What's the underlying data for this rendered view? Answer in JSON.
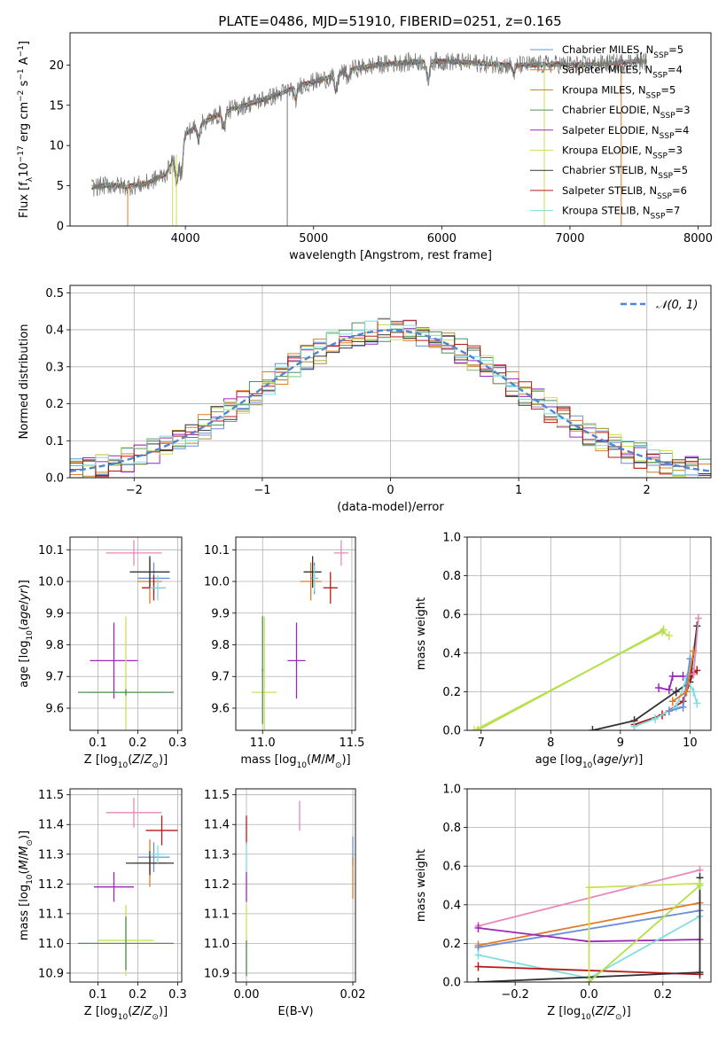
{
  "title": "PLATE=0486, MJD=51910, FIBERID=0251, z=0.165",
  "colors": {
    "Chabrier MILES": "#6a8fd8",
    "Salpeter MILES": "#e07a28",
    "Kroupa MILES": "#b08a2a",
    "Chabrier ELODIE": "#4f8f5a",
    "Salpeter ELODIE": "#9a28b8",
    "Kroupa ELODIE": "#c9e05a",
    "Chabrier STELIB": "#333333",
    "Salpeter STELIB": "#b81a1a",
    "Kroupa STELIB": "#7fdede",
    "pink": "#e68ab8",
    "lime": "#b0e04a",
    "data": "#777777",
    "gauss": "#4f86d0"
  },
  "chart_data": [
    {
      "id": "spectrum",
      "type": "line",
      "xlabel": "wavelength [Angstrom, rest frame]",
      "ylabel": "Flux [f_λ10^-17 erg cm^-2 s^-1 A^-1]",
      "xlim": [
        3100,
        8100
      ],
      "ylim": [
        0,
        24
      ],
      "xticks": [
        4000,
        5000,
        6000,
        7000,
        8000
      ],
      "yticks": [
        0,
        5,
        10,
        15,
        20
      ],
      "legend_position": "top-right",
      "legend": [
        {
          "label": "Chabrier MILES, N",
          "sub": "SSP",
          "suffix": "=5",
          "series": "Chabrier MILES"
        },
        {
          "label": "Salpeter MILES, N",
          "sub": "SSP",
          "suffix": "=4",
          "series": "Salpeter MILES"
        },
        {
          "label": "Kroupa MILES, N",
          "sub": "SSP",
          "suffix": "=5",
          "series": "Kroupa MILES"
        },
        {
          "label": "Chabrier ELODIE, N",
          "sub": "SSP",
          "suffix": "=3",
          "series": "Chabrier ELODIE"
        },
        {
          "label": "Salpeter ELODIE, N",
          "sub": "SSP",
          "suffix": "=4",
          "series": "Salpeter ELODIE"
        },
        {
          "label": "Kroupa ELODIE, N",
          "sub": "SSP",
          "suffix": "=3",
          "series": "Kroupa ELODIE"
        },
        {
          "label": "Chabrier STELIB, N",
          "sub": "SSP",
          "suffix": "=5",
          "series": "Chabrier STELIB"
        },
        {
          "label": "Salpeter STELIB, N",
          "sub": "SSP",
          "suffix": "=6",
          "series": "Salpeter STELIB"
        },
        {
          "label": "Kroupa STELIB, N",
          "sub": "SSP",
          "suffix": "=7",
          "series": "Kroupa STELIB"
        }
      ],
      "continuum": [
        [
          3270,
          4.8
        ],
        [
          3400,
          5.1
        ],
        [
          3550,
          4.9
        ],
        [
          3700,
          5.3
        ],
        [
          3850,
          6.5
        ],
        [
          3950,
          9.5
        ],
        [
          4000,
          11.5
        ],
        [
          4100,
          12.5
        ],
        [
          4300,
          14.2
        ],
        [
          4500,
          15.2
        ],
        [
          4700,
          16.2
        ],
        [
          4900,
          17.5
        ],
        [
          5100,
          18.3
        ],
        [
          5300,
          19.5
        ],
        [
          5500,
          20.0
        ],
        [
          5700,
          20.3
        ],
        [
          5900,
          20.5
        ],
        [
          6100,
          20.4
        ],
        [
          6300,
          20.2
        ],
        [
          6500,
          20.0
        ],
        [
          6700,
          20.0
        ],
        [
          6900,
          20.1
        ],
        [
          7100,
          20.0
        ],
        [
          7300,
          20.2
        ],
        [
          7500,
          20.4
        ],
        [
          7600,
          20.5
        ]
      ],
      "absorption_lines": [
        [
          3934,
          3.5
        ],
        [
          3969,
          3.5
        ],
        [
          4102,
          1.5
        ],
        [
          4300,
          2.0
        ],
        [
          4861,
          1.5
        ],
        [
          5175,
          2.0
        ],
        [
          5270,
          1.0
        ],
        [
          5892,
          2.5
        ],
        [
          6563,
          1.0
        ]
      ],
      "model_cutoffs": [
        [
          3550,
          "Salpeter MILES"
        ],
        [
          3900,
          "Kroupa ELODIE"
        ],
        [
          3930,
          "Kroupa ELODIE"
        ],
        [
          4795,
          "data"
        ],
        [
          6800,
          "Kroupa ELODIE"
        ],
        [
          7400,
          "Salpeter MILES"
        ]
      ]
    },
    {
      "id": "residuals",
      "type": "histogram",
      "xlabel": "(data-model)/error",
      "ylabel": "Normed distribution",
      "xlim": [
        -2.5,
        2.5
      ],
      "ylim": [
        0,
        0.52
      ],
      "xticks": [
        -2,
        -1,
        0,
        1,
        2
      ],
      "xtick_labels": [
        "−2",
        "−1",
        "0",
        "1",
        "2"
      ],
      "yticks": [
        0.0,
        0.1,
        0.2,
        0.3,
        0.4,
        0.5
      ],
      "ytick_labels": [
        "0.0",
        "0.1",
        "0.2",
        "0.3",
        "0.4",
        "0.5"
      ],
      "legend_label": "𝒩(0, 1)",
      "bin_width": 0.1,
      "gauss": {
        "mu": 0,
        "sigma": 1
      }
    },
    {
      "id": "age_vs_Z",
      "type": "errorbar",
      "xlabel": "Z [log10(Z/Z⊙)]",
      "ylabel": "age  [log10(age/yr)]",
      "xlim": [
        0.03,
        0.31
      ],
      "ylim": [
        9.53,
        10.14
      ],
      "xticks": [
        0.1,
        0.2,
        0.3
      ],
      "yticks": [
        9.6,
        9.7,
        9.8,
        9.9,
        10.0,
        10.1
      ],
      "points": [
        {
          "series": "pink",
          "x": 0.19,
          "y": 10.09,
          "xerr": 0.07,
          "yerr": 0.04
        },
        {
          "series": "Chabrier MILES",
          "x": 0.24,
          "y": 10.01,
          "xerr": 0.04,
          "yerr": 0.05
        },
        {
          "series": "Salpeter MILES",
          "x": 0.23,
          "y": 10.0,
          "xerr": 0.03,
          "yerr": 0.07
        },
        {
          "series": "Chabrier STELIB",
          "x": 0.23,
          "y": 10.03,
          "xerr": 0.05,
          "yerr": 0.05
        },
        {
          "series": "Salpeter STELIB",
          "x": 0.24,
          "y": 9.98,
          "xerr": 0.03,
          "yerr": 0.04
        },
        {
          "series": "Kroupa STELIB",
          "x": 0.25,
          "y": 9.98,
          "xerr": 0.02,
          "yerr": 0.04
        },
        {
          "series": "Salpeter ELODIE",
          "x": 0.14,
          "y": 9.75,
          "xerr": 0.06,
          "yerr": 0.12
        },
        {
          "series": "Kroupa ELODIE",
          "x": 0.17,
          "y": 9.65,
          "xerr": 0.09,
          "yerr": 0.24
        },
        {
          "series": "Chabrier ELODIE",
          "x": 0.17,
          "y": 9.65,
          "xerr": 0.12,
          "yerr": 0.01
        }
      ]
    },
    {
      "id": "age_vs_mass",
      "type": "errorbar",
      "xlabel": "mass [log10(M/M⊙)]",
      "ylabel": "",
      "xlim": [
        10.85,
        11.52
      ],
      "ylim": [
        9.53,
        10.14
      ],
      "xticks": [
        11.0,
        11.5
      ],
      "yticks": [
        9.6,
        9.7,
        9.8,
        9.9,
        10.0,
        10.1
      ],
      "points": [
        {
          "series": "pink",
          "x": 11.44,
          "y": 10.09,
          "xerr": 0.04,
          "yerr": 0.04
        },
        {
          "series": "Chabrier MILES",
          "x": 11.29,
          "y": 10.01,
          "xerr": 0.02,
          "yerr": 0.05
        },
        {
          "series": "Salpeter MILES",
          "x": 11.27,
          "y": 10.0,
          "xerr": 0.06,
          "yerr": 0.06
        },
        {
          "series": "Chabrier STELIB",
          "x": 11.28,
          "y": 10.03,
          "xerr": 0.05,
          "yerr": 0.05
        },
        {
          "series": "Salpeter STELIB",
          "x": 11.38,
          "y": 9.98,
          "xerr": 0.04,
          "yerr": 0.05
        },
        {
          "series": "Kroupa STELIB",
          "x": 11.29,
          "y": 10.01,
          "xerr": 0.01,
          "yerr": 0.04
        },
        {
          "series": "Salpeter ELODIE",
          "x": 11.19,
          "y": 9.75,
          "xerr": 0.05,
          "yerr": 0.12
        },
        {
          "series": "Kroupa ELODIE",
          "x": 11.01,
          "y": 9.65,
          "xerr": 0.07,
          "yerr": 0.24
        },
        {
          "series": "Chabrier ELODIE",
          "x": 11.0,
          "y": 9.72,
          "xerr": 0.005,
          "yerr": 0.17
        }
      ]
    },
    {
      "id": "weight_vs_age",
      "type": "line",
      "xlabel": "age  [log10(age/yr)]",
      "ylabel": "mass weight",
      "xlim": [
        6.8,
        10.3
      ],
      "ylim": [
        0,
        1.0
      ],
      "xticks": [
        7,
        8,
        9,
        10
      ],
      "yticks": [
        0.0,
        0.2,
        0.4,
        0.6,
        0.8,
        1.0
      ],
      "series": [
        {
          "series": "Kroupa ELODIE",
          "points": [
            [
              6.9,
              0.0
            ],
            [
              9.6,
              0.51
            ],
            [
              9.7,
              0.49
            ]
          ]
        },
        {
          "series": "lime",
          "points": [
            [
              6.95,
              0.0
            ],
            [
              9.62,
              0.52
            ]
          ]
        },
        {
          "series": "Chabrier STELIB",
          "points": [
            [
              8.6,
              0.0
            ],
            [
              9.2,
              0.05
            ],
            [
              9.8,
              0.2
            ],
            [
              10.0,
              0.25
            ],
            [
              10.1,
              0.54
            ]
          ]
        },
        {
          "series": "Salpeter STELIB",
          "points": [
            [
              9.2,
              0.03
            ],
            [
              9.6,
              0.08
            ],
            [
              9.9,
              0.15
            ],
            [
              10.05,
              0.3
            ],
            [
              10.1,
              0.31
            ]
          ]
        },
        {
          "series": "Salpeter ELODIE",
          "points": [
            [
              9.55,
              0.22
            ],
            [
              9.7,
              0.21
            ],
            [
              9.75,
              0.28
            ],
            [
              9.9,
              0.28
            ]
          ]
        },
        {
          "series": "Kroupa STELIB",
          "points": [
            [
              9.2,
              0.02
            ],
            [
              9.5,
              0.06
            ],
            [
              9.8,
              0.12
            ],
            [
              9.95,
              0.27
            ],
            [
              10.05,
              0.2
            ],
            [
              10.1,
              0.14
            ]
          ]
        },
        {
          "series": "Chabrier MILES",
          "points": [
            [
              9.7,
              0.1
            ],
            [
              9.9,
              0.12
            ],
            [
              10.0,
              0.37
            ]
          ]
        },
        {
          "series": "Salpeter MILES",
          "points": [
            [
              9.75,
              0.15
            ],
            [
              9.95,
              0.2
            ],
            [
              10.05,
              0.41
            ]
          ]
        },
        {
          "series": "pink",
          "points": [
            [
              10.05,
              0.29
            ],
            [
              10.12,
              0.58
            ]
          ]
        }
      ]
    },
    {
      "id": "mass_vs_Z",
      "type": "errorbar",
      "xlabel": "Z [log10(Z/Z⊙)]",
      "ylabel": "mass [log10(M/M⊙)]",
      "xlim": [
        0.03,
        0.31
      ],
      "ylim": [
        10.87,
        11.52
      ],
      "xticks": [
        0.1,
        0.2,
        0.3
      ],
      "yticks": [
        10.9,
        11.0,
        11.1,
        11.2,
        11.3,
        11.4,
        11.5
      ],
      "points": [
        {
          "series": "pink",
          "x": 0.19,
          "y": 11.44,
          "xerr": 0.07,
          "yerr": 0.05
        },
        {
          "series": "Salpeter STELIB",
          "x": 0.26,
          "y": 11.38,
          "xerr": 0.04,
          "yerr": 0.05
        },
        {
          "series": "Chabrier MILES",
          "x": 0.24,
          "y": 11.29,
          "xerr": 0.04,
          "yerr": 0.05
        },
        {
          "series": "Salpeter MILES",
          "x": 0.23,
          "y": 11.27,
          "xerr": 0.04,
          "yerr": 0.08
        },
        {
          "series": "Chabrier STELIB",
          "x": 0.23,
          "y": 11.27,
          "xerr": 0.06,
          "yerr": 0.04
        },
        {
          "series": "Kroupa STELIB",
          "x": 0.25,
          "y": 11.3,
          "xerr": 0.02,
          "yerr": 0.03
        },
        {
          "series": "Salpeter ELODIE",
          "x": 0.14,
          "y": 11.19,
          "xerr": 0.05,
          "yerr": 0.05
        },
        {
          "series": "Kroupa ELODIE",
          "x": 0.17,
          "y": 11.01,
          "xerr": 0.07,
          "yerr": 0.12
        },
        {
          "series": "Chabrier ELODIE",
          "x": 0.17,
          "y": 11.0,
          "xerr": 0.12,
          "yerr": 0.09
        }
      ]
    },
    {
      "id": "mass_vs_ebv",
      "type": "errorbar",
      "xlabel": "E(B-V)",
      "ylabel": "",
      "xlim": [
        -0.002,
        0.0205
      ],
      "ylim": [
        10.87,
        11.52
      ],
      "xticks": [
        0.0,
        0.02
      ],
      "xtick_labels": [
        "0.00",
        "0.02"
      ],
      "yticks": [
        10.9,
        11.0,
        11.1,
        11.2,
        11.3,
        11.4,
        11.5
      ],
      "points": [
        {
          "series": "pink",
          "x": 0.01,
          "y": 11.43,
          "xerr": 0,
          "yerr": 0.05
        },
        {
          "series": "Salpeter STELIB",
          "x": 0.0,
          "y": 11.38,
          "xerr": 0,
          "yerr": 0.05
        },
        {
          "series": "Chabrier MILES",
          "x": 0.02,
          "y": 11.31,
          "xerr": 0,
          "yerr": 0.05
        },
        {
          "series": "Salpeter MILES",
          "x": 0.02,
          "y": 11.22,
          "xerr": 0,
          "yerr": 0.07
        },
        {
          "series": "Kroupa STELIB",
          "x": 0.0,
          "y": 11.29,
          "xerr": 0,
          "yerr": 0.05
        },
        {
          "series": "Salpeter ELODIE",
          "x": 0.0,
          "y": 11.19,
          "xerr": 0,
          "yerr": 0.05
        },
        {
          "series": "Kroupa ELODIE",
          "x": 0.0,
          "y": 11.01,
          "xerr": 0,
          "yerr": 0.12
        },
        {
          "series": "Chabrier ELODIE",
          "x": 0.0,
          "y": 10.95,
          "xerr": 0,
          "yerr": 0.06
        }
      ]
    },
    {
      "id": "weight_vs_Z",
      "type": "line",
      "xlabel": "Z [log10(Z/Z⊙)]",
      "ylabel": "mass weight",
      "xlim": [
        -0.33,
        0.33
      ],
      "ylim": [
        0,
        1.0
      ],
      "xticks": [
        -0.2,
        0.0,
        0.2
      ],
      "xtick_labels": [
        "−0.2",
        "0.0",
        "0.2"
      ],
      "yticks": [
        0.0,
        0.2,
        0.4,
        0.6,
        0.8,
        1.0
      ],
      "series": [
        {
          "series": "pink",
          "points": [
            [
              -0.3,
              0.29
            ],
            [
              0.3,
              0.58
            ]
          ]
        },
        {
          "series": "Salpeter MILES",
          "points": [
            [
              -0.3,
              0.19
            ],
            [
              0.3,
              0.41
            ]
          ]
        },
        {
          "series": "Chabrier MILES",
          "points": [
            [
              -0.3,
              0.18
            ],
            [
              0.3,
              0.37
            ]
          ]
        },
        {
          "series": "Salpeter ELODIE",
          "points": [
            [
              -0.3,
              0.28
            ],
            [
              0.0,
              0.21
            ],
            [
              0.3,
              0.22
            ]
          ]
        },
        {
          "series": "Kroupa STELIB",
          "points": [
            [
              -0.3,
              0.14
            ],
            [
              0.0,
              0.02
            ],
            [
              0.3,
              0.34
            ]
          ]
        },
        {
          "series": "Salpeter STELIB",
          "points": [
            [
              -0.3,
              0.08
            ],
            [
              0.3,
              0.04
            ]
          ]
        },
        {
          "series": "Chabrier STELIB",
          "points": [
            [
              -0.3,
              0.0
            ],
            [
              0.3,
              0.05
            ],
            [
              0.3,
              0.54
            ]
          ]
        },
        {
          "series": "Kroupa ELODIE",
          "points": [
            [
              0.0,
              0.0
            ],
            [
              0.0,
              0.49
            ],
            [
              0.3,
              0.51
            ]
          ]
        },
        {
          "series": "lime",
          "points": [
            [
              0.0,
              0.0
            ],
            [
              0.3,
              0.5
            ]
          ]
        }
      ]
    }
  ]
}
